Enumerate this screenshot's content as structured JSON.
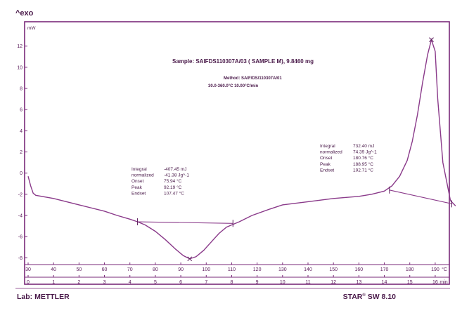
{
  "header": {
    "exo_label": "^exo",
    "sample": "Sample: SAIFDS110307A/03 ( SAMPLE M), 9.8460 mg",
    "method": "Method: SAIF/DS/110307A/01",
    "range": "30.0-360.0°C 10.00°C/min"
  },
  "footer": {
    "lab": "Lab: METTLER",
    "software_star": "STAR",
    "software_reg": "®",
    "software_rest": " SW 8.10"
  },
  "chart_data": {
    "type": "line",
    "ylabel": "mW",
    "y_ticks": [
      12,
      10,
      8,
      6,
      4,
      2,
      0,
      -2,
      -4,
      -6,
      -8
    ],
    "ylim": [
      -10.5,
      14.3
    ],
    "xlim_min": [
      0,
      16.5
    ],
    "x_min_ticks": [
      0,
      1,
      2,
      3,
      4,
      5,
      6,
      7,
      8,
      9,
      10,
      11,
      12,
      13,
      14,
      15,
      16
    ],
    "x_min_unit": "min",
    "x_temp_ticks": [
      30,
      40,
      50,
      60,
      70,
      80,
      90,
      100,
      110,
      120,
      130,
      140,
      150,
      160,
      170,
      180,
      190
    ],
    "x_temp_unit": "°C",
    "grid": false,
    "series": [
      {
        "values_time_min": [
          0.0,
          0.1,
          0.2,
          0.3,
          1.0,
          2.0,
          3.0,
          3.5,
          4.0,
          4.3,
          4.6,
          5.0,
          5.4,
          5.8,
          6.1,
          6.35,
          6.6,
          6.9,
          7.2,
          7.5,
          7.8,
          8.0,
          8.3,
          8.8,
          9.5,
          10.0,
          11.0,
          12.0,
          13.0,
          13.5,
          14.0,
          14.3,
          14.6,
          14.9,
          15.1,
          15.3,
          15.5,
          15.7,
          15.85,
          16.0,
          16.1,
          16.3,
          16.6,
          16.8
        ],
        "values_mw": [
          -0.3,
          -1.2,
          -1.9,
          -2.1,
          -2.4,
          -3.0,
          -3.6,
          -4.0,
          -4.35,
          -4.6,
          -4.9,
          -5.5,
          -6.3,
          -7.2,
          -7.8,
          -8.1,
          -7.9,
          -7.3,
          -6.5,
          -5.7,
          -5.1,
          -4.9,
          -4.6,
          -4.0,
          -3.4,
          -3.0,
          -2.7,
          -2.4,
          -2.2,
          -2.0,
          -1.7,
          -1.2,
          -0.3,
          1.2,
          3.0,
          5.5,
          8.5,
          11.2,
          12.6,
          11.5,
          7.0,
          1.0,
          -2.6,
          -3.1
        ]
      }
    ],
    "baselines": [
      {
        "x": [
          4.3,
          8.05
        ],
        "y": [
          -4.6,
          -4.75
        ]
      },
      {
        "x": [
          14.2,
          16.65
        ],
        "y": [
          -1.6,
          -2.9
        ]
      }
    ],
    "markers": [
      {
        "type": "bar",
        "x": 4.3,
        "y": -4.6
      },
      {
        "type": "bar",
        "x": 8.05,
        "y": -4.75
      },
      {
        "type": "cross",
        "x": 6.35,
        "y": -8.1
      },
      {
        "type": "bar",
        "x": 14.2,
        "y": -1.6
      },
      {
        "type": "bar",
        "x": 16.65,
        "y": -2.9
      },
      {
        "type": "cross",
        "x": 15.85,
        "y": 12.6
      }
    ],
    "annotations": [
      {
        "rows": [
          [
            "Integral",
            "-407.45 mJ"
          ],
          [
            "   normalized",
            "-41.38 Jg^-1"
          ],
          [
            "Onset",
            "75.94 °C"
          ],
          [
            "Peak",
            "92.19 °C"
          ],
          [
            "Endset",
            "107.47 °C"
          ]
        ]
      },
      {
        "rows": [
          [
            "Integral",
            "732.40 mJ"
          ],
          [
            "   normalized",
            "74.39 Jg^-1"
          ],
          [
            "Onset",
            "180.76 °C"
          ],
          [
            "Peak",
            "188.95 °C"
          ],
          [
            "Endset",
            "192.71 °C"
          ]
        ]
      }
    ]
  }
}
